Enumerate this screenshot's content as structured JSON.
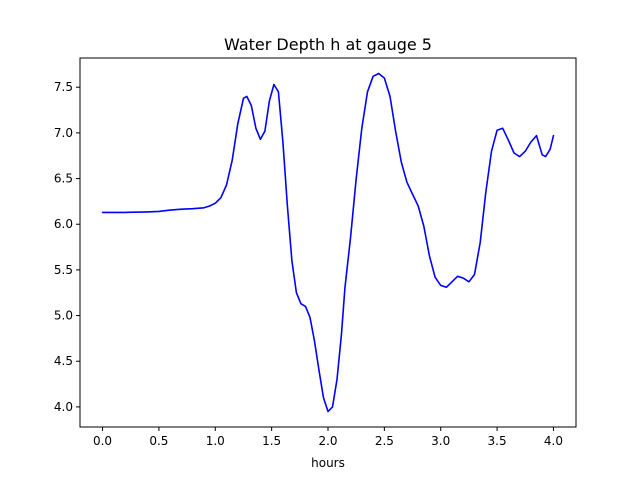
{
  "chart_data": {
    "type": "line",
    "title": "Water Depth h at gauge 5",
    "xlabel": "hours",
    "ylabel": "",
    "xlim": [
      -0.2,
      4.2
    ],
    "ylim": [
      3.78,
      7.82
    ],
    "grid": false,
    "legend": "none",
    "xticks": [
      0.0,
      0.5,
      1.0,
      1.5,
      2.0,
      2.5,
      3.0,
      3.5,
      4.0
    ],
    "xtick_labels": [
      "0.0",
      "0.5",
      "1.0",
      "1.5",
      "2.0",
      "2.5",
      "3.0",
      "3.5",
      "4.0"
    ],
    "yticks": [
      4.0,
      4.5,
      5.0,
      5.5,
      6.0,
      6.5,
      7.0,
      7.5
    ],
    "ytick_labels": [
      "4.0",
      "4.5",
      "5.0",
      "5.5",
      "6.0",
      "6.5",
      "7.0",
      "7.5"
    ],
    "series": [
      {
        "color": "#0000ff",
        "x": [
          0.0,
          0.2,
          0.4,
          0.5,
          0.6,
          0.7,
          0.8,
          0.9,
          0.95,
          1.0,
          1.05,
          1.1,
          1.15,
          1.2,
          1.25,
          1.28,
          1.32,
          1.36,
          1.4,
          1.44,
          1.48,
          1.52,
          1.56,
          1.6,
          1.64,
          1.68,
          1.72,
          1.76,
          1.8,
          1.84,
          1.88,
          1.92,
          1.96,
          2.0,
          2.04,
          2.08,
          2.12,
          2.15,
          2.2,
          2.25,
          2.3,
          2.35,
          2.4,
          2.45,
          2.5,
          2.55,
          2.6,
          2.65,
          2.7,
          2.75,
          2.8,
          2.85,
          2.9,
          2.95,
          3.0,
          3.05,
          3.1,
          3.15,
          3.2,
          3.25,
          3.3,
          3.35,
          3.4,
          3.45,
          3.5,
          3.55,
          3.6,
          3.65,
          3.7,
          3.75,
          3.8,
          3.85,
          3.9,
          3.93,
          3.97,
          4.0
        ],
        "y": [
          6.13,
          6.13,
          6.135,
          6.14,
          6.155,
          6.165,
          6.17,
          6.18,
          6.2,
          6.23,
          6.29,
          6.43,
          6.7,
          7.1,
          7.38,
          7.4,
          7.3,
          7.05,
          6.93,
          7.02,
          7.35,
          7.53,
          7.45,
          6.9,
          6.2,
          5.6,
          5.25,
          5.13,
          5.1,
          4.98,
          4.72,
          4.4,
          4.1,
          3.95,
          4.0,
          4.3,
          4.8,
          5.3,
          5.85,
          6.5,
          7.05,
          7.45,
          7.62,
          7.65,
          7.6,
          7.4,
          7.02,
          6.68,
          6.46,
          6.33,
          6.2,
          5.98,
          5.65,
          5.42,
          5.33,
          5.31,
          5.37,
          5.43,
          5.41,
          5.37,
          5.45,
          5.8,
          6.35,
          6.8,
          7.03,
          7.05,
          6.92,
          6.78,
          6.74,
          6.8,
          6.9,
          6.97,
          6.76,
          6.74,
          6.82,
          6.97
        ]
      }
    ]
  }
}
